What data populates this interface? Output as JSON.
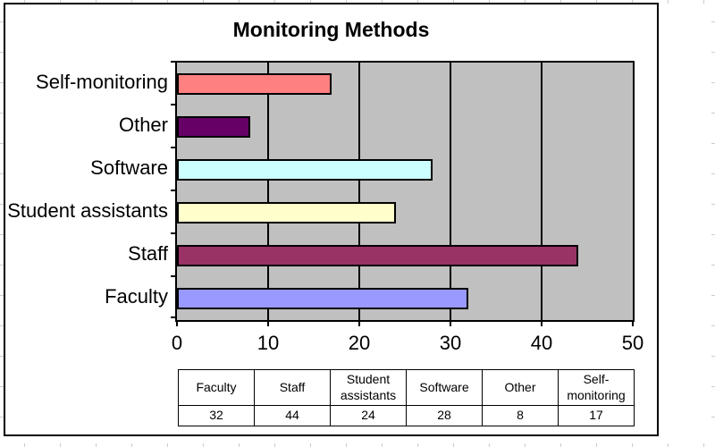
{
  "chart_data": {
    "type": "bar",
    "orientation": "horizontal",
    "title": "Monitoring Methods",
    "categories": [
      "Faculty",
      "Staff",
      "Student assistants",
      "Software",
      "Other",
      "Self-monitoring"
    ],
    "values": [
      32,
      44,
      24,
      28,
      8,
      17
    ],
    "bar_order_top_to_bottom": [
      "Self-monitoring",
      "Other",
      "Software",
      "Student assistants",
      "Staff",
      "Faculty"
    ],
    "colors": {
      "Faculty": "#9999FF",
      "Staff": "#993366",
      "Student assistants": "#FFFFCC",
      "Software": "#CCFFFF",
      "Other": "#660066",
      "Self-monitoring": "#FF8080"
    },
    "xlabel": "",
    "ylabel": "",
    "xlim": [
      0,
      50
    ],
    "x_ticks": [
      0,
      10,
      20,
      30,
      40,
      50
    ],
    "grid": "vertical major gridlines on",
    "legend": "none",
    "plot_background": "#C0C0C0",
    "chart_background": "#FFFFFF",
    "data_table": {
      "headers": [
        "Faculty",
        "Staff",
        "Student assistants",
        "Software",
        "Other",
        "Self-monitoring"
      ],
      "values": [
        32,
        44,
        24,
        28,
        8,
        17
      ]
    }
  }
}
